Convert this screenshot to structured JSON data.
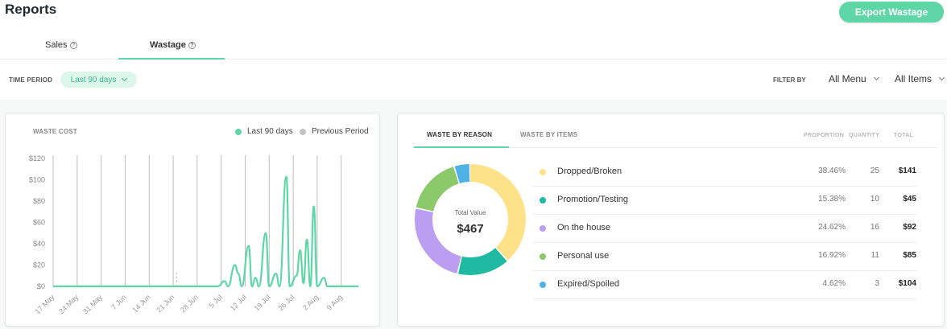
{
  "page": {
    "title": "Reports",
    "export_label": "Export Wastage"
  },
  "tabs": [
    {
      "label": "Sales",
      "active": false
    },
    {
      "label": "Wastage",
      "active": true
    }
  ],
  "filters": {
    "time_period_label": "TIME PERIOD",
    "time_period_value": "Last 90 days",
    "filter_by_label": "FILTER BY",
    "menu_value": "All Menu",
    "items_value": "All Items"
  },
  "waste_cost": {
    "title": "WASTE COST",
    "legend": [
      {
        "label": "Last 90 days",
        "color": "#5fd6a8"
      },
      {
        "label": "Previous Period",
        "color": "#c4c4c4"
      }
    ]
  },
  "chart_data": {
    "type": "line",
    "y_axis": {
      "ylim": [
        0,
        120
      ],
      "ticks": [
        "$0",
        "$20",
        "$40",
        "$60",
        "$80",
        "$100",
        "$120"
      ]
    },
    "x_axis": {
      "range": [
        "2024-05-17",
        "2024-08-14"
      ],
      "ticks": [
        "17 May",
        "24 May",
        "31 May",
        "7 Jun",
        "14 Jun",
        "21 Jun",
        "28 Jun",
        "5 Jul",
        "12 Jul",
        "19 Jul",
        "26 Jul",
        "2 Aug",
        "9 Aug"
      ]
    },
    "grid": {
      "vertical": true,
      "horizontal": false
    },
    "series": [
      {
        "name": "Last 90 days",
        "color": "#5fd6a8",
        "points": [
          [
            "2024-05-17",
            0
          ],
          [
            "2024-07-04",
            0
          ],
          [
            "2024-07-06",
            5
          ],
          [
            "2024-07-07",
            0
          ],
          [
            "2024-07-09",
            20
          ],
          [
            "2024-07-10",
            12
          ],
          [
            "2024-07-11",
            0
          ],
          [
            "2024-07-13",
            38
          ],
          [
            "2024-07-14",
            0
          ],
          [
            "2024-07-15",
            8
          ],
          [
            "2024-07-16",
            0
          ],
          [
            "2024-07-18",
            50
          ],
          [
            "2024-07-19",
            0
          ],
          [
            "2024-07-21",
            12
          ],
          [
            "2024-07-22",
            0
          ],
          [
            "2024-07-24",
            103
          ],
          [
            "2024-07-25",
            0
          ],
          [
            "2024-07-27",
            10
          ],
          [
            "2024-07-28",
            34
          ],
          [
            "2024-07-29",
            3
          ],
          [
            "2024-07-30",
            44
          ],
          [
            "2024-07-31",
            0
          ],
          [
            "2024-08-01",
            75
          ],
          [
            "2024-08-02",
            0
          ],
          [
            "2024-08-04",
            8
          ],
          [
            "2024-08-05",
            0
          ],
          [
            "2024-08-14",
            0
          ]
        ]
      },
      {
        "name": "Previous Period",
        "color": "#c4c4c4",
        "points": [
          [
            "2024-06-22",
            0
          ],
          [
            "2024-06-22",
            2
          ],
          [
            "2024-06-22",
            7
          ],
          [
            "2024-06-22",
            14
          ]
        ]
      }
    ]
  },
  "waste_reasons": {
    "tabs": [
      "WASTE BY REASON",
      "WASTE BY ITEMS"
    ],
    "columns": [
      "PROPORTION",
      "QUANTITY",
      "TOTAL"
    ],
    "total_label": "Total Value",
    "total_value": "$467",
    "rows": [
      {
        "name": "Dropped/Broken",
        "proportion": "38.46%",
        "proportion_value": 38.46,
        "quantity": "25",
        "total": "$141",
        "color": "#fde28a"
      },
      {
        "name": "Promotion/Testing",
        "proportion": "15.38%",
        "proportion_value": 15.38,
        "quantity": "10",
        "total": "$45",
        "color": "#1fb9a4"
      },
      {
        "name": "On the house",
        "proportion": "24.62%",
        "proportion_value": 24.62,
        "quantity": "16",
        "total": "$92",
        "color": "#bb9ef2"
      },
      {
        "name": "Personal use",
        "proportion": "16.92%",
        "proportion_value": 16.92,
        "quantity": "11",
        "total": "$85",
        "color": "#8cc96b"
      },
      {
        "name": "Expired/Spoiled",
        "proportion": "4.62%",
        "proportion_value": 4.62,
        "quantity": "3",
        "total": "$104",
        "color": "#4eb3e4"
      }
    ]
  }
}
